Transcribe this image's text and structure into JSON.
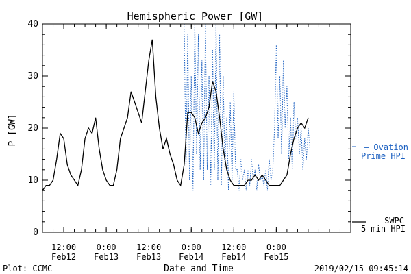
{
  "chart_data": {
    "type": "line",
    "title": "Hemispheric Power [GW]",
    "xlabel": "Date and Time",
    "ylabel": "P [GW]",
    "ylim": [
      0,
      40
    ],
    "y_ticks": [
      "0",
      "10",
      "20",
      "30",
      "40"
    ],
    "x_range": [
      "2019-02-12 06:00",
      "2019-02-15 21:00"
    ],
    "x_ticks": [
      {
        "time": "2019-02-12 12:00",
        "line1": "12:00",
        "line2": "Feb12"
      },
      {
        "time": "2019-02-13 00:00",
        "line1": "0:00",
        "line2": "Feb13"
      },
      {
        "time": "2019-02-13 12:00",
        "line1": "12:00",
        "line2": "Feb13"
      },
      {
        "time": "2019-02-14 00:00",
        "line1": "0:00",
        "line2": "Feb14"
      },
      {
        "time": "2019-02-14 12:00",
        "line1": "12:00",
        "line2": "Feb14"
      },
      {
        "time": "2019-02-15 00:00",
        "line1": "0:00",
        "line2": "Feb15"
      }
    ],
    "grid": false,
    "legend_placement": "right",
    "series": [
      {
        "name": "SWPC 5-min HPI",
        "legend_line1": "SWPC",
        "legend_line2": "5—min HPI",
        "color": "#000000",
        "style": "solid",
        "x": [
          "2019-02-12 06:00",
          "2019-02-12 07:00",
          "2019-02-12 08:00",
          "2019-02-12 09:00",
          "2019-02-12 10:00",
          "2019-02-12 11:00",
          "2019-02-12 12:00",
          "2019-02-12 13:00",
          "2019-02-12 14:00",
          "2019-02-12 15:00",
          "2019-02-12 16:00",
          "2019-02-12 17:00",
          "2019-02-12 18:00",
          "2019-02-12 19:00",
          "2019-02-12 20:00",
          "2019-02-12 21:00",
          "2019-02-12 22:00",
          "2019-02-12 23:00",
          "2019-02-13 00:00",
          "2019-02-13 01:00",
          "2019-02-13 02:00",
          "2019-02-13 03:00",
          "2019-02-13 04:00",
          "2019-02-13 05:00",
          "2019-02-13 06:00",
          "2019-02-13 07:00",
          "2019-02-13 08:00",
          "2019-02-13 09:00",
          "2019-02-13 10:00",
          "2019-02-13 11:00",
          "2019-02-13 12:00",
          "2019-02-13 13:00",
          "2019-02-13 14:00",
          "2019-02-13 15:00",
          "2019-02-13 16:00",
          "2019-02-13 17:00",
          "2019-02-13 18:00",
          "2019-02-13 19:00",
          "2019-02-13 20:00",
          "2019-02-13 21:00",
          "2019-02-13 22:00",
          "2019-02-13 23:00",
          "2019-02-14 00:00",
          "2019-02-14 01:00",
          "2019-02-14 02:00",
          "2019-02-14 03:00",
          "2019-02-14 04:00",
          "2019-02-14 05:00",
          "2019-02-14 06:00",
          "2019-02-14 07:00",
          "2019-02-14 08:00",
          "2019-02-14 09:00",
          "2019-02-14 10:00",
          "2019-02-14 11:00",
          "2019-02-14 12:00",
          "2019-02-14 13:00",
          "2019-02-14 14:00",
          "2019-02-14 15:00",
          "2019-02-14 16:00",
          "2019-02-14 17:00",
          "2019-02-14 18:00",
          "2019-02-14 19:00",
          "2019-02-14 20:00",
          "2019-02-14 21:00",
          "2019-02-14 22:00",
          "2019-02-14 23:00",
          "2019-02-15 00:00",
          "2019-02-15 01:00",
          "2019-02-15 02:00",
          "2019-02-15 03:00",
          "2019-02-15 04:00",
          "2019-02-15 05:00",
          "2019-02-15 06:00",
          "2019-02-15 07:00",
          "2019-02-15 08:00",
          "2019-02-15 09:00"
        ],
        "y": [
          8,
          9,
          9,
          10,
          14,
          19,
          18,
          13,
          11,
          10,
          9,
          12,
          18,
          20,
          19,
          22,
          16,
          12,
          10,
          9,
          9,
          12,
          18,
          20,
          22,
          27,
          25,
          23,
          21,
          27,
          33,
          37,
          26,
          20,
          16,
          18,
          15,
          13,
          10,
          9,
          13,
          23,
          23,
          22,
          19,
          21,
          22,
          24,
          29,
          27,
          22,
          16,
          12,
          10,
          9,
          9,
          9,
          9,
          10,
          10,
          11,
          10,
          11,
          10,
          9,
          9,
          9,
          9,
          10,
          11,
          15,
          18,
          20,
          21,
          20,
          22
        ]
      },
      {
        "name": "Ovation Prime HPI",
        "legend_line1": "— Ovation",
        "legend_line2": "Prime HPI",
        "color": "#1a5fc0",
        "style": "dotted",
        "x": [
          "2019-02-13 22:00",
          "2019-02-13 22:30",
          "2019-02-13 23:00",
          "2019-02-13 23:30",
          "2019-02-14 00:00",
          "2019-02-14 00:30",
          "2019-02-14 01:00",
          "2019-02-14 01:30",
          "2019-02-14 02:00",
          "2019-02-14 02:30",
          "2019-02-14 03:00",
          "2019-02-14 03:30",
          "2019-02-14 04:00",
          "2019-02-14 04:30",
          "2019-02-14 05:00",
          "2019-02-14 05:30",
          "2019-02-14 06:00",
          "2019-02-14 06:30",
          "2019-02-14 07:00",
          "2019-02-14 07:30",
          "2019-02-14 08:00",
          "2019-02-14 08:30",
          "2019-02-14 09:00",
          "2019-02-14 09:30",
          "2019-02-14 10:00",
          "2019-02-14 10:30",
          "2019-02-14 11:00",
          "2019-02-14 11:30",
          "2019-02-14 12:00",
          "2019-02-14 12:30",
          "2019-02-14 13:00",
          "2019-02-14 13:30",
          "2019-02-14 14:00",
          "2019-02-14 14:30",
          "2019-02-14 15:00",
          "2019-02-14 15:30",
          "2019-02-14 16:00",
          "2019-02-14 16:30",
          "2019-02-14 17:00",
          "2019-02-14 17:30",
          "2019-02-14 18:00",
          "2019-02-14 18:30",
          "2019-02-14 19:00",
          "2019-02-14 19:30",
          "2019-02-14 20:00",
          "2019-02-14 20:30",
          "2019-02-14 21:00",
          "2019-02-14 21:30",
          "2019-02-14 22:00",
          "2019-02-14 22:30",
          "2019-02-14 23:00",
          "2019-02-14 23:30",
          "2019-02-15 00:00",
          "2019-02-15 00:30",
          "2019-02-15 01:00",
          "2019-02-15 01:30",
          "2019-02-15 02:00",
          "2019-02-15 02:30",
          "2019-02-15 03:00",
          "2019-02-15 03:30",
          "2019-02-15 04:00",
          "2019-02-15 04:30",
          "2019-02-15 05:00",
          "2019-02-15 05:30",
          "2019-02-15 06:00",
          "2019-02-15 06:30",
          "2019-02-15 07:00",
          "2019-02-15 07:30",
          "2019-02-15 08:00",
          "2019-02-15 08:30",
          "2019-02-15 09:00",
          "2019-02-15 09:30"
        ],
        "y": [
          40,
          12,
          38,
          10,
          30,
          8,
          40,
          15,
          38,
          12,
          33,
          10,
          40,
          12,
          30,
          9,
          35,
          12,
          40,
          10,
          38,
          9,
          30,
          12,
          22,
          8,
          25,
          10,
          27,
          12,
          12,
          8,
          14,
          10,
          12,
          8,
          12,
          9,
          14,
          10,
          12,
          8,
          13,
          10,
          11,
          9,
          12,
          8,
          14,
          10,
          12,
          20,
          36,
          18,
          30,
          15,
          33,
          20,
          28,
          14,
          22,
          12,
          25,
          18,
          22,
          15,
          20,
          12,
          18,
          14,
          20,
          16
        ]
      }
    ]
  },
  "footer": {
    "source": "Plot: CCMC",
    "timestamp": "2019/02/15 09:45:14"
  }
}
